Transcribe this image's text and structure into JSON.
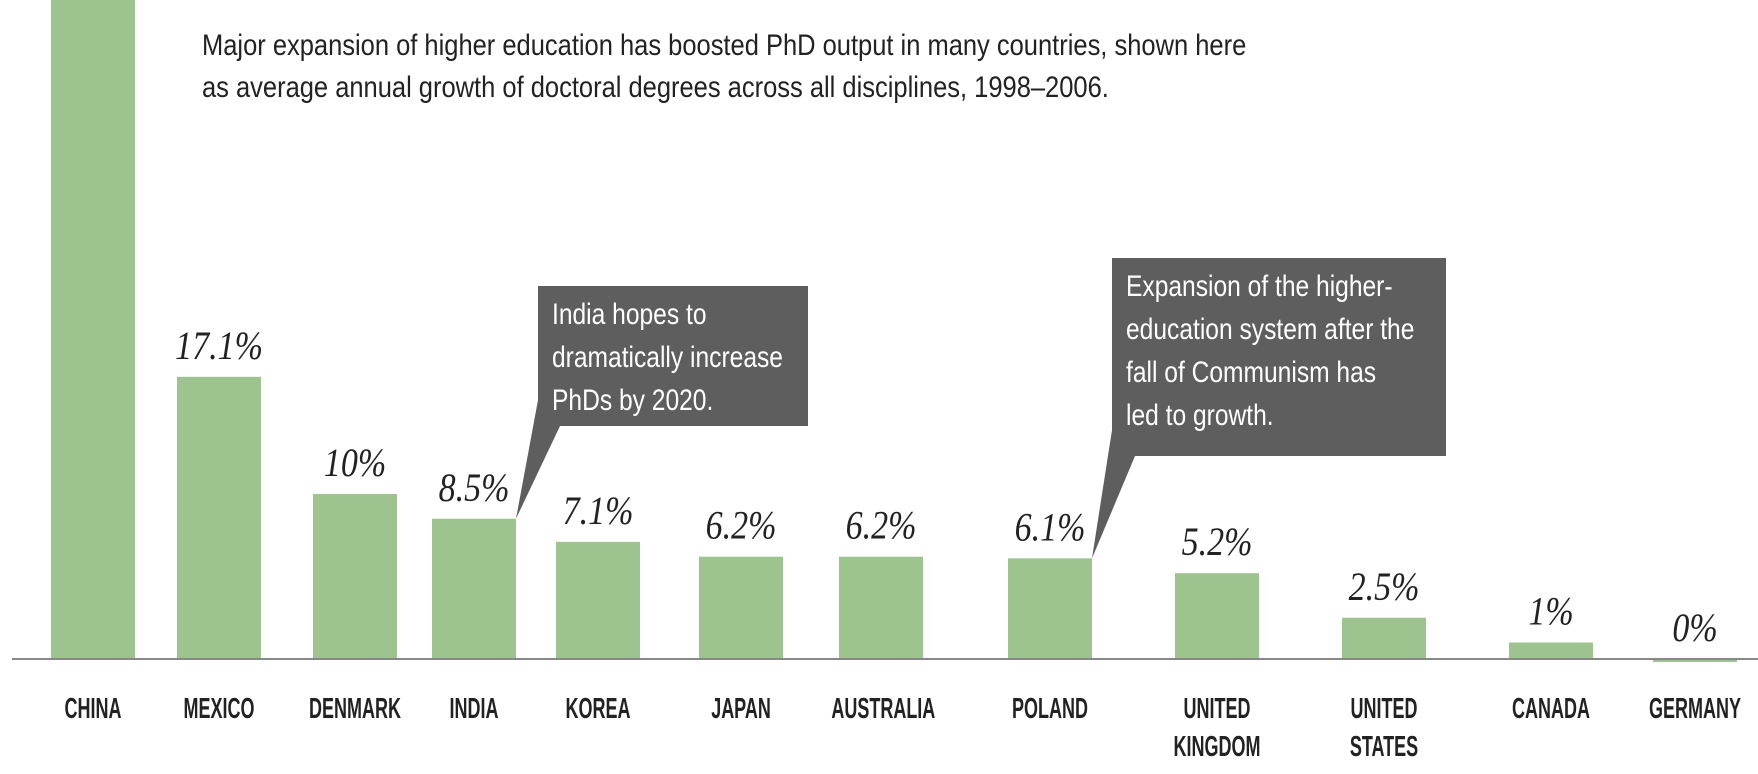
{
  "chart_data": {
    "type": "bar",
    "subtitle_lines": [
      "Major expansion of higher education has boosted PhD output in many countries, shown here",
      "as average annual growth of doctoral degrees across all disciplines, 1998–2006."
    ],
    "categories": [
      "CHINA",
      "MEXICO",
      "DENMARK",
      "INDIA",
      "KOREA",
      "JAPAN",
      "AUSTRALIA",
      "POLAND",
      "UNITED KINGDOM",
      "UNITED STATES",
      "CANADA",
      "GERMANY"
    ],
    "values": [
      40,
      17.1,
      10,
      8.5,
      7.1,
      6.2,
      6.2,
      6.1,
      5.2,
      2.5,
      1,
      0
    ],
    "value_labels": [
      null,
      "17.1%",
      "10%",
      "8.5%",
      "7.1%",
      "6.2%",
      "6.2%",
      "6.1%",
      "5.2%",
      "2.5%",
      "1%",
      "0%"
    ],
    "color": "#9dc48e",
    "ylim": [
      0,
      40
    ],
    "annotations": [
      {
        "category": "INDIA",
        "lines": [
          "India hopes to",
          "dramatically increase",
          "PhDs by 2020."
        ]
      },
      {
        "category": "POLAND",
        "lines": [
          "Expansion of the higher-",
          "education system after the",
          "fall of Communism has",
          "led to growth."
        ]
      }
    ]
  }
}
